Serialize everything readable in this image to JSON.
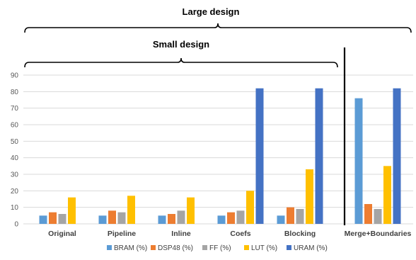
{
  "chart_data": {
    "type": "bar",
    "categories": [
      "Original",
      "Pipeline",
      "Inline",
      "Coefs",
      "Blocking",
      "Merge+Boundaries"
    ],
    "series": [
      {
        "name": "BRAM (%)",
        "color": "#5b9bd5",
        "values": [
          5,
          5,
          5,
          5,
          5,
          76
        ]
      },
      {
        "name": "DSP48 (%)",
        "color": "#ed7d31",
        "values": [
          7,
          8,
          6,
          7,
          10,
          12
        ]
      },
      {
        "name": "FF (%)",
        "color": "#a5a5a5",
        "values": [
          6,
          7,
          8,
          8,
          9,
          9
        ]
      },
      {
        "name": "LUT (%)",
        "color": "#ffc000",
        "values": [
          16,
          17,
          16,
          20,
          33,
          35
        ]
      },
      {
        "name": "URAM (%)",
        "color": "#4472c4",
        "values": [
          0,
          0,
          0,
          82,
          82,
          82
        ]
      }
    ],
    "ylim": [
      0,
      90
    ],
    "yticks": [
      0,
      10,
      20,
      30,
      40,
      50,
      60,
      70,
      80,
      90
    ],
    "grid": true,
    "legend_position": "bottom",
    "annotations": {
      "large_design": "Large design",
      "small_design": "Small design"
    },
    "separator_after_category": "Blocking"
  }
}
